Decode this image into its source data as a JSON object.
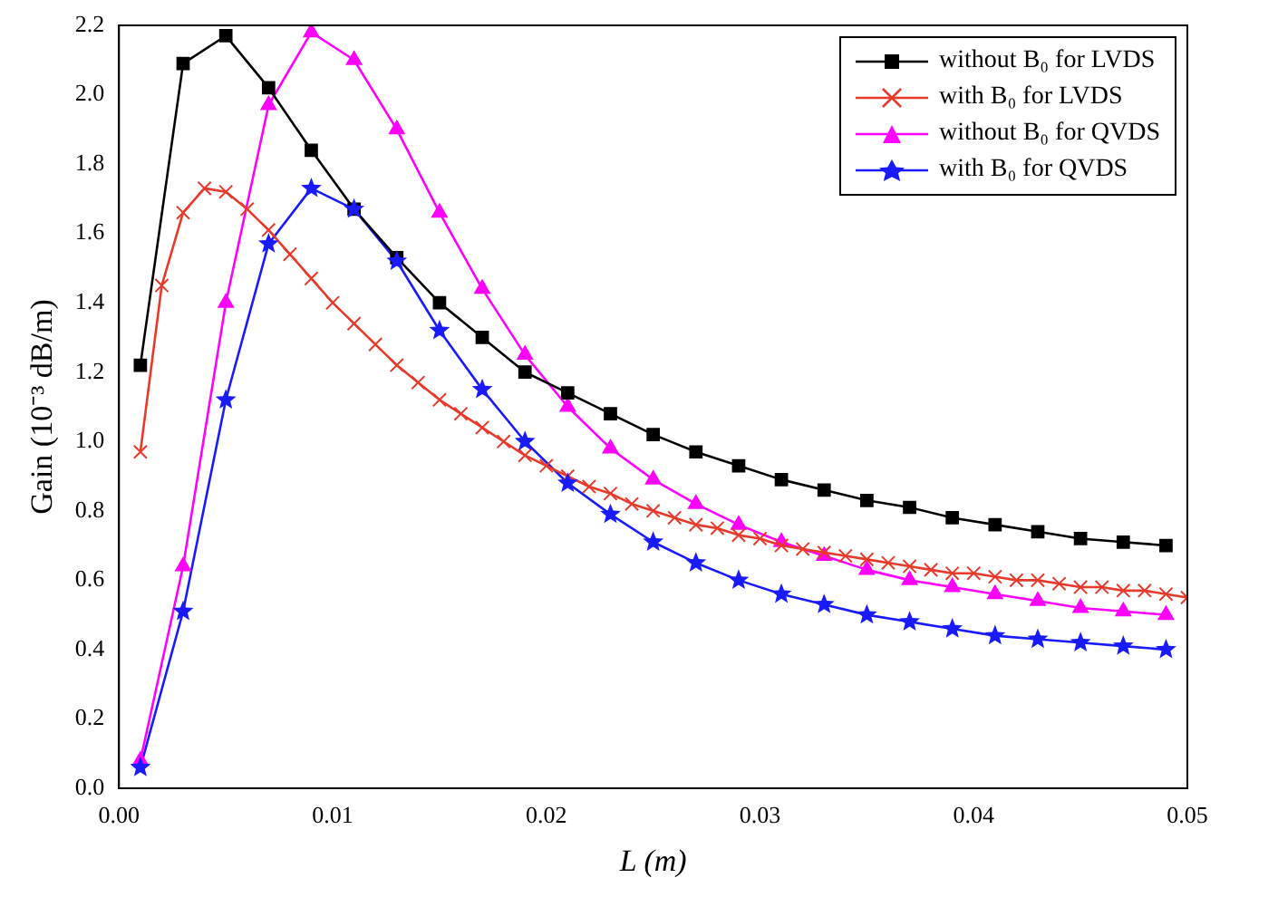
{
  "chart_data": {
    "type": "line",
    "xlabel": "L (m)",
    "ylabel": "Gain (10⁻³ dB/m)",
    "xlim": [
      0,
      0.05
    ],
    "xticks": [
      {
        "value": 0,
        "label": "0.00"
      },
      {
        "value": 0.01,
        "label": "0.01"
      },
      {
        "value": 0.02,
        "label": "0.02"
      },
      {
        "value": 0.03,
        "label": "0.03"
      },
      {
        "value": 0.04,
        "label": "0.04"
      },
      {
        "value": 0.05,
        "label": "0.05"
      }
    ],
    "ylim": [
      0,
      2.2
    ],
    "yticks": [
      {
        "value": 0,
        "label": "0.0"
      },
      {
        "value": 0.2,
        "label": "0.2"
      },
      {
        "value": 0.4,
        "label": "0.4"
      },
      {
        "value": 0.6,
        "label": "0.6"
      },
      {
        "value": 0.8,
        "label": "0.8"
      },
      {
        "value": 1,
        "label": "1.0"
      },
      {
        "value": 1.2,
        "label": "1.2"
      },
      {
        "value": 1.4,
        "label": "1.4"
      },
      {
        "value": 1.6,
        "label": "1.6"
      },
      {
        "value": 1.8,
        "label": "1.8"
      },
      {
        "value": 2,
        "label": "2.0"
      },
      {
        "value": 2.2,
        "label": "2.2"
      }
    ],
    "grid": false,
    "legend": "top right",
    "line_style": "solid",
    "series": [
      {
        "name": "without B₀ for LVDS",
        "color": "#000000",
        "marker": "square",
        "x": [
          0.001,
          0.003,
          0.005,
          0.007,
          0.009,
          0.011,
          0.013,
          0.015,
          0.017,
          0.019,
          0.021,
          0.023,
          0.025,
          0.027,
          0.029,
          0.031,
          0.033,
          0.035,
          0.037,
          0.039,
          0.041,
          0.043,
          0.045,
          0.047,
          0.049
        ],
        "values": [
          1.22,
          2.09,
          2.17,
          2.02,
          1.84,
          1.67,
          1.53,
          1.4,
          1.3,
          1.2,
          1.14,
          1.08,
          1.02,
          0.97,
          0.93,
          0.89,
          0.86,
          0.83,
          0.81,
          0.78,
          0.76,
          0.74,
          0.72,
          0.71,
          0.7
        ]
      },
      {
        "name": "with B₀ for LVDS",
        "color": "#e8392b",
        "marker": "cross",
        "x": [
          0.001,
          0.002,
          0.003,
          0.004,
          0.005,
          0.006,
          0.007,
          0.008,
          0.009,
          0.01,
          0.011,
          0.012,
          0.013,
          0.014,
          0.015,
          0.016,
          0.017,
          0.018,
          0.019,
          0.02,
          0.021,
          0.022,
          0.023,
          0.024,
          0.025,
          0.026,
          0.027,
          0.028,
          0.029,
          0.03,
          0.031,
          0.032,
          0.033,
          0.034,
          0.035,
          0.036,
          0.037,
          0.038,
          0.039,
          0.04,
          0.041,
          0.042,
          0.043,
          0.044,
          0.045,
          0.046,
          0.047,
          0.048,
          0.049,
          0.05
        ],
        "values": [
          0.97,
          1.45,
          1.66,
          1.73,
          1.72,
          1.67,
          1.61,
          1.54,
          1.47,
          1.4,
          1.34,
          1.28,
          1.22,
          1.17,
          1.12,
          1.08,
          1.04,
          1.0,
          0.96,
          0.93,
          0.9,
          0.87,
          0.85,
          0.82,
          0.8,
          0.78,
          0.76,
          0.75,
          0.73,
          0.72,
          0.7,
          0.69,
          0.68,
          0.67,
          0.66,
          0.65,
          0.64,
          0.63,
          0.62,
          0.62,
          0.61,
          0.6,
          0.6,
          0.59,
          0.58,
          0.58,
          0.57,
          0.57,
          0.56,
          0.55
        ]
      },
      {
        "name": "without B₀ for QVDS",
        "color": "#ff00ff",
        "marker": "triangle",
        "x": [
          0.001,
          0.003,
          0.005,
          0.007,
          0.009,
          0.011,
          0.013,
          0.015,
          0.017,
          0.019,
          0.021,
          0.023,
          0.025,
          0.027,
          0.029,
          0.031,
          0.033,
          0.035,
          0.037,
          0.039,
          0.041,
          0.043,
          0.045,
          0.047,
          0.049
        ],
        "values": [
          0.08,
          0.64,
          1.4,
          1.97,
          2.18,
          2.1,
          1.9,
          1.66,
          1.44,
          1.25,
          1.1,
          0.98,
          0.89,
          0.82,
          0.76,
          0.71,
          0.67,
          0.63,
          0.6,
          0.58,
          0.56,
          0.54,
          0.52,
          0.51,
          0.5
        ]
      },
      {
        "name": "with B₀ for QVDS",
        "color": "#1a1aff",
        "marker": "star",
        "x": [
          0.001,
          0.003,
          0.005,
          0.007,
          0.009,
          0.011,
          0.013,
          0.015,
          0.017,
          0.019,
          0.021,
          0.023,
          0.025,
          0.027,
          0.029,
          0.031,
          0.033,
          0.035,
          0.037,
          0.039,
          0.041,
          0.043,
          0.045,
          0.047,
          0.049
        ],
        "values": [
          0.06,
          0.51,
          1.12,
          1.57,
          1.73,
          1.67,
          1.52,
          1.32,
          1.15,
          1.0,
          0.88,
          0.79,
          0.71,
          0.65,
          0.6,
          0.56,
          0.53,
          0.5,
          0.48,
          0.46,
          0.44,
          0.43,
          0.42,
          0.41,
          0.4
        ]
      }
    ]
  }
}
